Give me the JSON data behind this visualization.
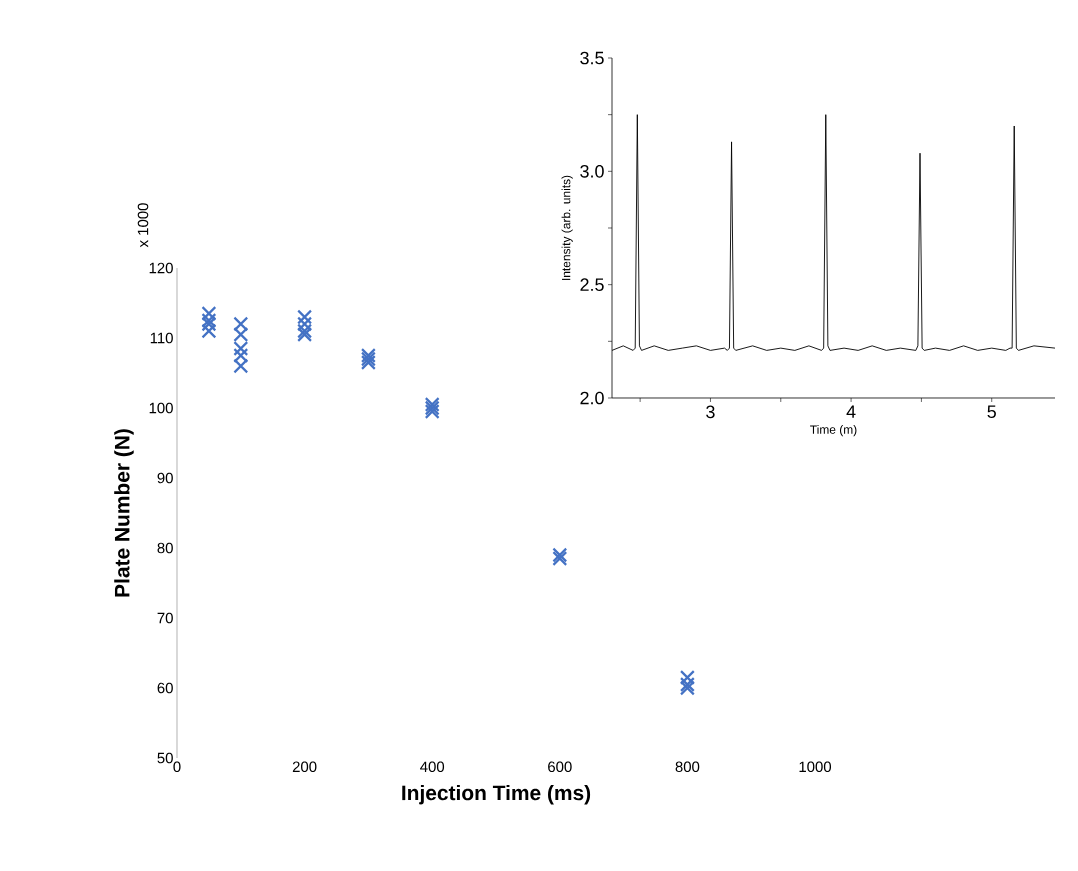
{
  "chart_data": [
    {
      "type": "scatter",
      "xlabel": "Injection Time (ms)",
      "ylabel": "Plate Number (N)",
      "annotations": [
        "x 1000"
      ],
      "marker": "cross",
      "xlim": [
        0,
        1000
      ],
      "xticks": [
        0,
        200,
        400,
        600,
        800,
        1000
      ],
      "ylim": [
        50,
        120
      ],
      "yticks": [
        50,
        60,
        70,
        80,
        90,
        100,
        110,
        120
      ],
      "series": [
        {
          "color": "#4472c4",
          "x": [
            50,
            50,
            50,
            50,
            100,
            100,
            100,
            100,
            100,
            200,
            200,
            200,
            200,
            300,
            300,
            300,
            400,
            400,
            400,
            600,
            600,
            800,
            800,
            800
          ],
          "values": [
            113.5,
            112.5,
            112,
            111,
            112,
            110.5,
            108.5,
            107.5,
            106,
            113,
            112,
            111,
            110.5,
            107.5,
            107,
            106.5,
            100.5,
            100,
            99.5,
            79,
            78.5,
            61.5,
            60.5,
            60
          ]
        }
      ]
    },
    {
      "type": "line",
      "xlabel": "Time (m)",
      "ylabel": "Intensity (arb. units)",
      "xlim": [
        2.3,
        5.45
      ],
      "xticks": [
        {
          "value": 2.5,
          "label": null
        },
        3,
        {
          "value": 3.5,
          "label": null
        },
        4,
        {
          "value": 4.5,
          "label": null
        },
        5
      ],
      "ylim": [
        2.0,
        3.5
      ],
      "yticks": [
        {
          "value": 2,
          "label": "2.0"
        },
        {
          "value": 2.25,
          "label": null
        },
        {
          "value": 2.5,
          "label": "2.5"
        },
        {
          "value": 2.75,
          "label": null
        },
        {
          "value": 3,
          "label": "3.0"
        },
        {
          "value": 3.25,
          "label": null
        },
        {
          "value": 3.5,
          "label": "3.5"
        }
      ],
      "series": [
        {
          "color": "#000000",
          "x": [
            2.3,
            2.38,
            2.45,
            2.465,
            2.48,
            2.495,
            2.51,
            2.6,
            2.7,
            2.8,
            2.9,
            3.0,
            3.1,
            3.12,
            3.135,
            3.15,
            3.165,
            3.18,
            3.3,
            3.4,
            3.5,
            3.6,
            3.7,
            3.79,
            3.805,
            3.82,
            3.835,
            3.85,
            3.95,
            4.05,
            4.15,
            4.25,
            4.35,
            4.46,
            4.475,
            4.49,
            4.505,
            4.52,
            4.6,
            4.7,
            4.8,
            4.9,
            5.0,
            5.1,
            5.13,
            5.145,
            5.16,
            5.175,
            5.19,
            5.3,
            5.45
          ],
          "values": [
            2.21,
            2.23,
            2.21,
            2.22,
            3.25,
            2.23,
            2.21,
            2.23,
            2.21,
            2.22,
            2.23,
            2.21,
            2.22,
            2.21,
            2.22,
            3.13,
            2.22,
            2.21,
            2.23,
            2.21,
            2.22,
            2.21,
            2.23,
            2.21,
            2.22,
            3.25,
            2.23,
            2.21,
            2.22,
            2.21,
            2.23,
            2.21,
            2.22,
            2.21,
            2.23,
            3.08,
            2.22,
            2.21,
            2.22,
            2.21,
            2.23,
            2.21,
            2.22,
            2.21,
            2.22,
            2.22,
            3.2,
            2.22,
            2.21,
            2.23,
            2.22
          ]
        }
      ]
    }
  ]
}
